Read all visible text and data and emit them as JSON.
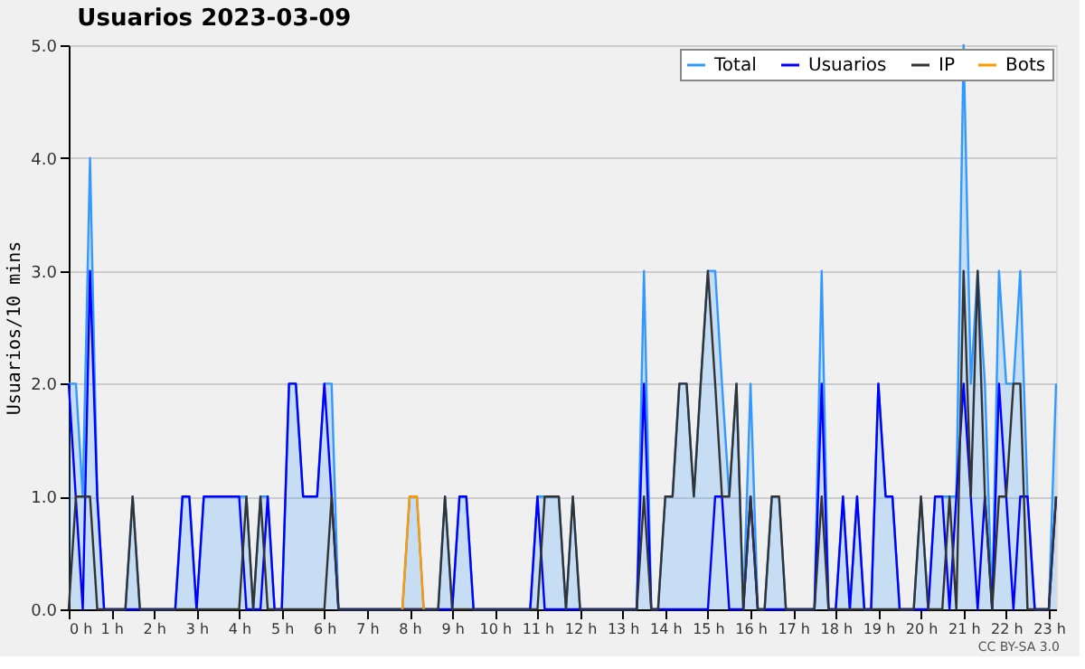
{
  "chart_data": {
    "type": "line",
    "title": "Usuarios  2023-03-09",
    "ylabel": "Usuarios/10 mins",
    "annotations": [
      "CC BY-SA 3.0"
    ],
    "xlim": [
      0,
      23.17
    ],
    "ylim": [
      0,
      5
    ],
    "xticks": [
      {
        "value": 0,
        "label": "0 h"
      },
      {
        "value": 1,
        "label": "1 h"
      },
      {
        "value": 2,
        "label": "2 h"
      },
      {
        "value": 3,
        "label": "3 h"
      },
      {
        "value": 4,
        "label": "4 h"
      },
      {
        "value": 5,
        "label": "5 h"
      },
      {
        "value": 6,
        "label": "6 h"
      },
      {
        "value": 7,
        "label": "7 h"
      },
      {
        "value": 8,
        "label": "8 h"
      },
      {
        "value": 9,
        "label": "9 h"
      },
      {
        "value": 10,
        "label": "10 h"
      },
      {
        "value": 11,
        "label": "11 h"
      },
      {
        "value": 12,
        "label": "12 h"
      },
      {
        "value": 13,
        "label": "13 h"
      },
      {
        "value": 14,
        "label": "14 h"
      },
      {
        "value": 15,
        "label": "15 h"
      },
      {
        "value": 16,
        "label": "16 h"
      },
      {
        "value": 17,
        "label": "17 h"
      },
      {
        "value": 18,
        "label": "18 h"
      },
      {
        "value": 19,
        "label": "19 h"
      },
      {
        "value": 20,
        "label": "20 h"
      },
      {
        "value": 21,
        "label": "21 h"
      },
      {
        "value": 22,
        "label": "22 h"
      },
      {
        "value": 23,
        "label": "23 h"
      }
    ],
    "yticks": [
      {
        "value": 0,
        "label": "0.0"
      },
      {
        "value": 1,
        "label": "1.0"
      },
      {
        "value": 2,
        "label": "2.0"
      },
      {
        "value": 3,
        "label": "3.0"
      },
      {
        "value": 4,
        "label": "4.0"
      },
      {
        "value": 5,
        "label": "5.0"
      }
    ],
    "grid": "y",
    "legend": "top right",
    "line_style": "solid",
    "marker": "none",
    "series": [
      {
        "name": "Total",
        "type": "area",
        "color": "#3399ff",
        "x": [
          0,
          0.17,
          0.33,
          0.5,
          0.67,
          0.83,
          1.33,
          1.5,
          1.67,
          2.5,
          2.67,
          2.83,
          3.0,
          3.17,
          4.0,
          4.17,
          4.33,
          4.5,
          4.67,
          4.83,
          5.0,
          5.17,
          5.33,
          5.5,
          5.83,
          6.0,
          6.17,
          6.33,
          7.83,
          8.0,
          8.17,
          8.33,
          8.67,
          8.83,
          9.0,
          9.17,
          9.33,
          9.5,
          10.83,
          11.0,
          11.17,
          11.5,
          11.67,
          11.83,
          12.0,
          13.33,
          13.5,
          13.67,
          13.83,
          14.0,
          14.17,
          14.33,
          14.5,
          14.67,
          14.83,
          15.0,
          15.17,
          15.33,
          15.5,
          15.67,
          15.83,
          16.0,
          16.17,
          16.33,
          16.5,
          16.67,
          16.83,
          17.5,
          17.67,
          17.83,
          18.0,
          18.17,
          18.33,
          18.5,
          18.67,
          18.83,
          19.0,
          19.17,
          19.33,
          19.5,
          19.83,
          20.0,
          20.17,
          20.33,
          20.5,
          20.67,
          20.83,
          21.0,
          21.17,
          21.33,
          21.5,
          21.67,
          21.83,
          22.0,
          22.17,
          22.33,
          22.5,
          22.67,
          23.0,
          23.17
        ],
        "values": [
          2,
          2,
          1,
          4,
          1,
          0,
          0,
          1,
          0,
          0,
          1,
          1,
          0,
          1,
          1,
          1,
          0,
          1,
          1,
          0,
          0,
          2,
          2,
          1,
          1,
          2,
          2,
          0,
          0,
          1,
          1,
          0,
          0,
          1,
          0,
          1,
          1,
          0,
          0,
          1,
          1,
          1,
          0,
          1,
          0,
          0,
          3,
          0,
          0,
          1,
          1,
          2,
          2,
          1,
          2,
          3,
          3,
          2,
          1,
          2,
          0,
          2,
          0,
          0,
          1,
          1,
          0,
          0,
          3,
          0,
          0,
          1,
          0,
          1,
          0,
          0,
          2,
          1,
          1,
          0,
          0,
          1,
          0,
          1,
          1,
          1,
          1,
          5,
          2,
          3,
          2,
          0,
          3,
          2,
          2,
          3,
          1,
          0,
          0,
          2
        ]
      },
      {
        "name": "Usuarios",
        "color": "#0000ff",
        "x": [
          0,
          0.33,
          0.5,
          0.67,
          0.83,
          2.5,
          2.67,
          2.83,
          3.0,
          3.17,
          4.0,
          4.17,
          4.5,
          4.67,
          4.83,
          5.0,
          5.17,
          5.33,
          5.5,
          5.83,
          6.0,
          6.17,
          6.33,
          9.0,
          9.17,
          9.33,
          9.5,
          10.83,
          11.0,
          11.17,
          13.33,
          13.5,
          13.67,
          15.0,
          15.17,
          15.33,
          15.5,
          15.83,
          16.0,
          16.17,
          17.5,
          17.67,
          17.83,
          18.0,
          18.17,
          18.33,
          18.5,
          18.67,
          18.83,
          19.0,
          19.17,
          19.33,
          19.5,
          20.17,
          20.33,
          20.5,
          20.67,
          20.83,
          21.0,
          21.17,
          21.33,
          21.5,
          21.67,
          21.83,
          22.0,
          22.17,
          22.33,
          22.5,
          22.67,
          23.0,
          23.17
        ],
        "values": [
          2,
          0,
          3,
          1,
          0,
          0,
          1,
          1,
          0,
          1,
          1,
          0,
          0,
          1,
          0,
          0,
          2,
          2,
          1,
          1,
          2,
          1,
          0,
          0,
          1,
          1,
          0,
          0,
          1,
          0,
          0,
          2,
          0,
          0,
          1,
          1,
          0,
          0,
          1,
          0,
          0,
          2,
          0,
          0,
          1,
          0,
          1,
          0,
          0,
          2,
          1,
          1,
          0,
          0,
          1,
          1,
          0,
          1,
          2,
          1,
          0,
          1,
          0,
          2,
          1,
          0,
          1,
          1,
          0,
          0,
          1
        ]
      },
      {
        "name": "IP",
        "color": "#333333",
        "x": [
          0,
          0.17,
          0.5,
          0.67,
          1.33,
          1.5,
          1.67,
          4.0,
          4.17,
          4.33,
          4.5,
          4.67,
          6.0,
          6.17,
          6.33,
          8.67,
          8.83,
          9.0,
          11.0,
          11.17,
          11.5,
          11.67,
          11.83,
          12.0,
          13.33,
          13.5,
          13.67,
          13.83,
          14.0,
          14.17,
          14.33,
          14.5,
          14.67,
          14.83,
          15.0,
          15.17,
          15.33,
          15.5,
          15.67,
          15.83,
          16.0,
          16.17,
          16.33,
          16.5,
          16.67,
          16.83,
          17.5,
          17.67,
          17.83,
          19.83,
          20.0,
          20.17,
          20.5,
          20.67,
          20.83,
          21.0,
          21.17,
          21.33,
          21.5,
          21.67,
          21.83,
          22.0,
          22.17,
          22.33,
          22.5,
          23.0,
          23.17
        ],
        "values": [
          0,
          1,
          1,
          0,
          0,
          1,
          0,
          0,
          1,
          0,
          1,
          0,
          0,
          1,
          0,
          0,
          1,
          0,
          0,
          1,
          1,
          0,
          1,
          0,
          0,
          1,
          0,
          0,
          1,
          1,
          2,
          2,
          1,
          2,
          3,
          2,
          1,
          1,
          2,
          0,
          1,
          0,
          0,
          1,
          1,
          0,
          0,
          1,
          0,
          0,
          1,
          0,
          0,
          1,
          0,
          3,
          1,
          3,
          1,
          0,
          1,
          1,
          2,
          2,
          0,
          0,
          1
        ]
      },
      {
        "name": "Bots",
        "color": "#ff9900",
        "x": [
          7.83,
          8.0,
          8.17,
          8.33
        ],
        "values": [
          0,
          1,
          1,
          0
        ]
      }
    ]
  }
}
